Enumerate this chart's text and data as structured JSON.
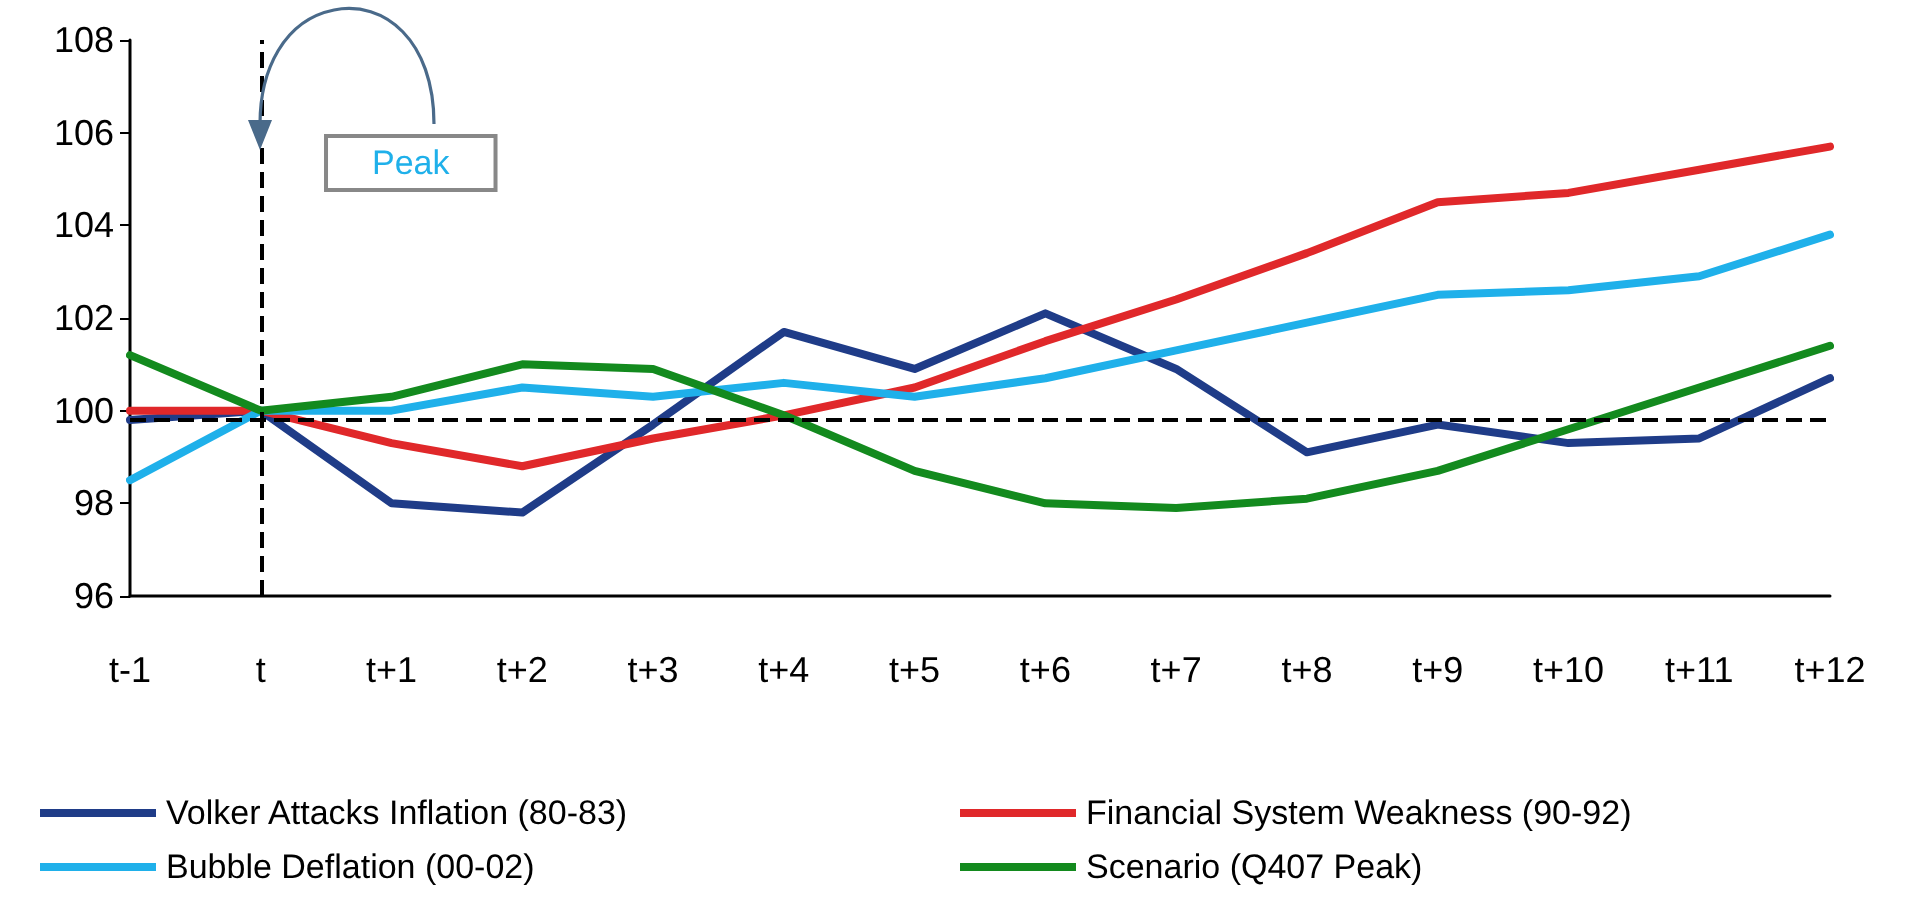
{
  "chart_data": {
    "type": "line",
    "categories": [
      "t-1",
      "t",
      "t+1",
      "t+2",
      "t+3",
      "t+4",
      "t+5",
      "t+6",
      "t+7",
      "t+8",
      "t+9",
      "t+10",
      "t+11",
      "t+12"
    ],
    "series": [
      {
        "name": "Volker Attacks Inflation (80-83)",
        "color": "#1f3c88",
        "values": [
          99.8,
          100,
          98.0,
          97.8,
          99.7,
          101.7,
          100.9,
          102.1,
          100.9,
          99.1,
          99.7,
          99.3,
          99.4,
          100.7
        ]
      },
      {
        "name": "Financial System Weakness (90-92)",
        "color": "#e0282a",
        "values": [
          100,
          100,
          99.3,
          98.8,
          99.4,
          99.9,
          100.5,
          101.5,
          102.4,
          103.4,
          104.5,
          104.7,
          105.2,
          105.7
        ]
      },
      {
        "name": "Bubble Deflation (00-02)",
        "color": "#1fb0ea",
        "values": [
          98.5,
          100,
          100,
          100.5,
          100.3,
          100.6,
          100.3,
          100.7,
          101.3,
          101.9,
          102.5,
          102.6,
          102.9,
          103.8
        ]
      },
      {
        "name": "Scenario (Q407 Peak)",
        "color": "#138a1e",
        "values": [
          101.2,
          100,
          100.3,
          101,
          100.9,
          99.9,
          98.7,
          98,
          97.9,
          98.1,
          98.7,
          99.6,
          100.5,
          101.4
        ]
      }
    ],
    "ylim": [
      96,
      108
    ],
    "yticks": [
      96,
      98,
      100,
      102,
      104,
      106,
      108
    ],
    "grid": false,
    "legend": "bottom",
    "marker": "none",
    "line_style": "solid",
    "ref_lines": [
      {
        "axis": "x",
        "value": "t",
        "label": "Peak",
        "line_style": "dashed",
        "color": "#000000"
      },
      {
        "axis": "y",
        "value": 99.8,
        "line_style": "dashed",
        "color": "#000000"
      }
    ]
  }
}
